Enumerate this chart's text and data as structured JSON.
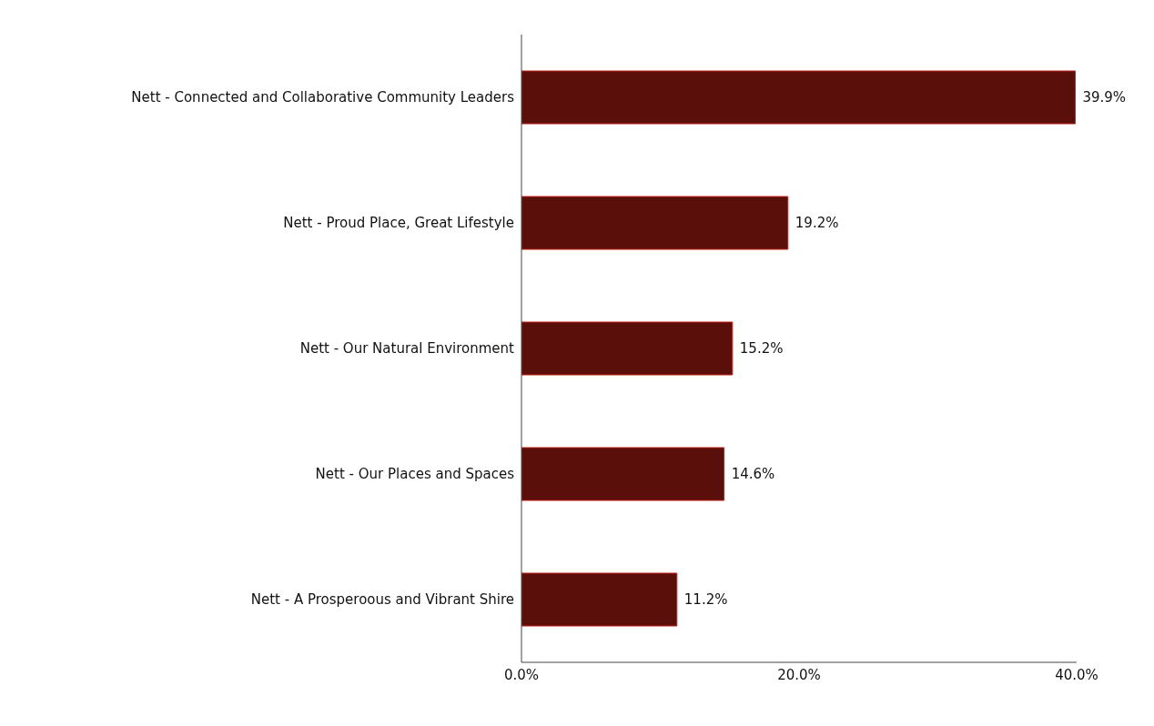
{
  "chart_data": {
    "type": "bar",
    "orientation": "horizontal",
    "categories": [
      "Nett - Connected and Collaborative Community Leaders",
      "Nett - Proud Place, Great Lifestyle",
      "Nett - Our Natural Environment",
      "Nett - Our Places and Spaces",
      "Nett - A Prosperoous and Vibrant Shire"
    ],
    "values": [
      39.9,
      19.2,
      15.2,
      14.6,
      11.2
    ],
    "value_labels": [
      "39.9%",
      "19.2%",
      "15.2%",
      "14.6%",
      "11.2%"
    ],
    "color": "#5a0f0b",
    "xlim": [
      0,
      40
    ],
    "xticks": [
      {
        "value": 0,
        "label": "0.0%"
      },
      {
        "value": 20,
        "label": "20.0%"
      },
      {
        "value": 40,
        "label": "40.0%"
      }
    ],
    "grid": false,
    "legend": false
  }
}
